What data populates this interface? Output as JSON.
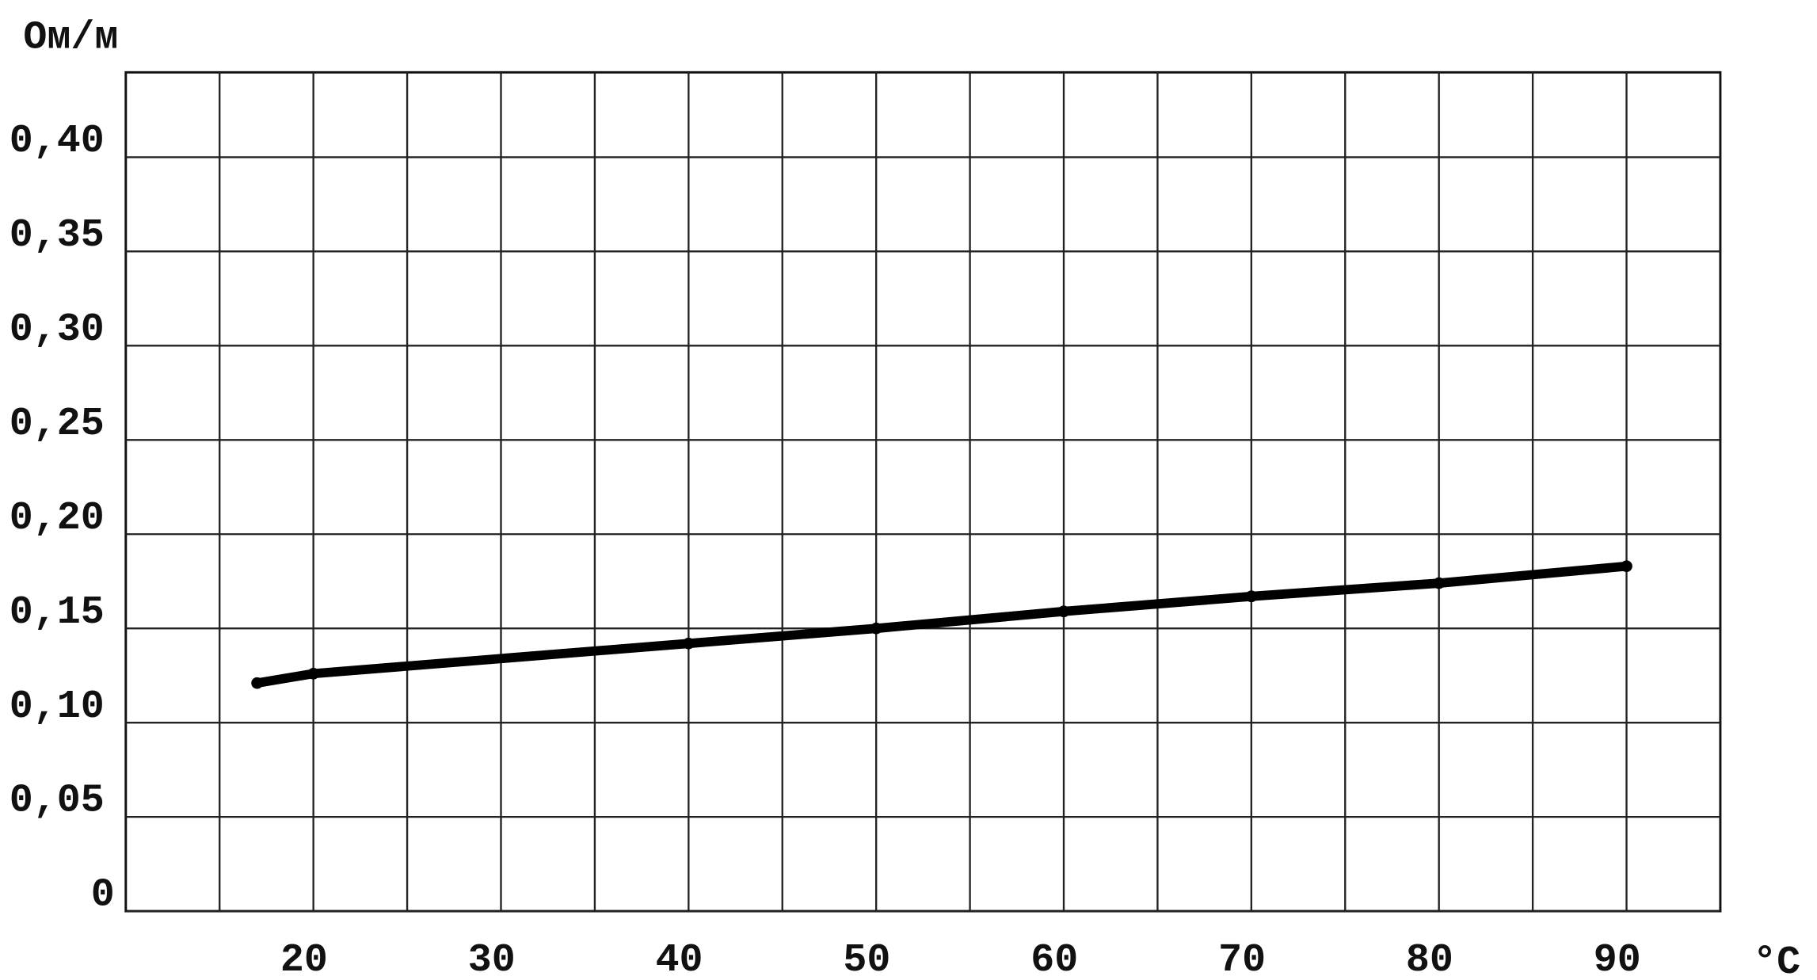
{
  "chart_data": {
    "type": "line",
    "y_label": "Ом/м",
    "x_label": "°C",
    "x": [
      17,
      20,
      40,
      50,
      60,
      70,
      80,
      90
    ],
    "series": [
      {
        "color": "#000000",
        "values": [
          0.121,
          0.126,
          0.142,
          0.15,
          0.159,
          0.167,
          0.174,
          0.183
        ]
      }
    ],
    "xlim": [
      10,
      95
    ],
    "ylim": [
      0,
      0.445
    ],
    "xticks": [
      20,
      30,
      40,
      50,
      60,
      70,
      80,
      90
    ],
    "xminorticks": [
      15,
      25,
      35,
      45,
      55,
      65,
      75,
      85
    ],
    "yticks": [
      0,
      {
        "value": 0.05,
        "label": "0,05"
      },
      {
        "value": 0.1,
        "label": "0,10"
      },
      {
        "value": 0.15,
        "label": "0,15"
      },
      {
        "value": 0.2,
        "label": "0,20"
      },
      {
        "value": 0.25,
        "label": "0,25"
      },
      {
        "value": 0.3,
        "label": "0,30"
      },
      {
        "value": 0.35,
        "label": "0,35"
      },
      {
        "value": 0.4,
        "label": "0,40"
      }
    ],
    "grid": true
  }
}
